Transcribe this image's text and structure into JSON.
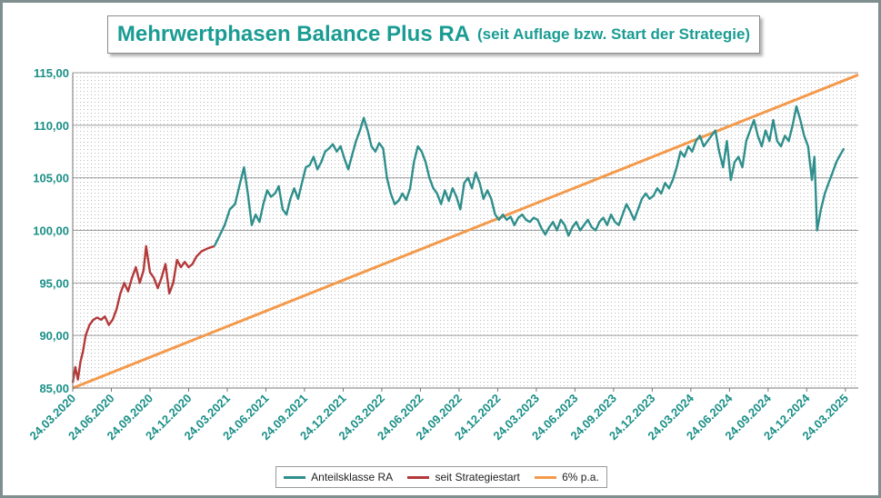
{
  "chart_data": {
    "type": "line",
    "title": "Mehrwertphasen Balance Plus RA",
    "subtitle": "(seit Auflage bzw. Start der Strategie)",
    "xlabel": "",
    "ylabel": "",
    "ylim": [
      85,
      115
    ],
    "yticks": [
      "85,00",
      "90,00",
      "95,00",
      "100,00",
      "105,00",
      "110,00",
      "115,00"
    ],
    "xticks": [
      "24.03.2020",
      "24.06.2020",
      "24.09.2020",
      "24.12.2020",
      "24.03.2021",
      "24.06.2021",
      "24.09.2021",
      "24.12.2021",
      "24.03.2022",
      "24.06.2022",
      "24.09.2022",
      "24.12.2022",
      "24.03.2023",
      "24.06.2023",
      "24.09.2023",
      "24.12.2023",
      "24.03.2024",
      "24.06.2024",
      "24.09.2024",
      "24.12.2024",
      "24.03.2025"
    ],
    "grid": true,
    "legend_position": "bottom",
    "series": [
      {
        "name": "Anteilsklasse RA",
        "color": "#2f8f8c",
        "points": [
          [
            11.0,
            98.5
          ],
          [
            11.4,
            99.5
          ],
          [
            11.8,
            100.5
          ],
          [
            12.2,
            102.0
          ],
          [
            12.6,
            102.5
          ],
          [
            13.0,
            104.5
          ],
          [
            13.3,
            106.0
          ],
          [
            13.6,
            103.5
          ],
          [
            13.9,
            100.5
          ],
          [
            14.2,
            101.5
          ],
          [
            14.5,
            100.8
          ],
          [
            14.8,
            102.5
          ],
          [
            15.1,
            103.8
          ],
          [
            15.4,
            103.2
          ],
          [
            15.7,
            103.5
          ],
          [
            16.0,
            104.2
          ],
          [
            16.3,
            102.0
          ],
          [
            16.6,
            101.5
          ],
          [
            16.9,
            103.0
          ],
          [
            17.2,
            104.0
          ],
          [
            17.5,
            103.0
          ],
          [
            17.8,
            104.5
          ],
          [
            18.1,
            106.0
          ],
          [
            18.4,
            106.2
          ],
          [
            18.7,
            107.0
          ],
          [
            19.0,
            105.8
          ],
          [
            19.3,
            106.5
          ],
          [
            19.6,
            107.5
          ],
          [
            19.9,
            107.8
          ],
          [
            20.2,
            108.2
          ],
          [
            20.5,
            107.5
          ],
          [
            20.8,
            108.0
          ],
          [
            21.1,
            106.8
          ],
          [
            21.4,
            105.8
          ],
          [
            21.7,
            107.2
          ],
          [
            22.0,
            108.5
          ],
          [
            22.3,
            109.5
          ],
          [
            22.6,
            110.7
          ],
          [
            22.9,
            109.5
          ],
          [
            23.2,
            108.0
          ],
          [
            23.5,
            107.5
          ],
          [
            23.8,
            108.3
          ],
          [
            24.1,
            107.8
          ],
          [
            24.4,
            105.0
          ],
          [
            24.7,
            103.5
          ],
          [
            25.0,
            102.5
          ],
          [
            25.3,
            102.8
          ],
          [
            25.6,
            103.5
          ],
          [
            25.9,
            102.9
          ],
          [
            26.2,
            104.0
          ],
          [
            26.5,
            106.5
          ],
          [
            26.8,
            108.0
          ],
          [
            27.1,
            107.5
          ],
          [
            27.4,
            106.5
          ],
          [
            27.7,
            105.0
          ],
          [
            28.0,
            104.0
          ],
          [
            28.3,
            103.5
          ],
          [
            28.6,
            102.5
          ],
          [
            28.9,
            103.8
          ],
          [
            29.2,
            102.8
          ],
          [
            29.5,
            104.0
          ],
          [
            29.8,
            103.2
          ],
          [
            30.1,
            102.0
          ],
          [
            30.4,
            104.5
          ],
          [
            30.7,
            105.0
          ],
          [
            31.0,
            104.0
          ],
          [
            31.3,
            105.5
          ],
          [
            31.6,
            104.5
          ],
          [
            31.9,
            103.0
          ],
          [
            32.2,
            103.8
          ],
          [
            32.5,
            103.0
          ],
          [
            32.8,
            101.5
          ],
          [
            33.1,
            101.0
          ],
          [
            33.4,
            101.5
          ],
          [
            33.7,
            101.0
          ],
          [
            34.0,
            101.3
          ],
          [
            34.3,
            100.5
          ],
          [
            34.6,
            101.2
          ],
          [
            34.9,
            101.5
          ],
          [
            35.2,
            101.0
          ],
          [
            35.5,
            100.8
          ],
          [
            35.8,
            101.2
          ],
          [
            36.1,
            101.0
          ],
          [
            36.4,
            100.2
          ],
          [
            36.7,
            99.6
          ],
          [
            37.0,
            100.3
          ],
          [
            37.3,
            100.8
          ],
          [
            37.6,
            100.0
          ],
          [
            37.9,
            101.0
          ],
          [
            38.2,
            100.5
          ],
          [
            38.5,
            99.5
          ],
          [
            38.8,
            100.3
          ],
          [
            39.1,
            100.8
          ],
          [
            39.4,
            100.0
          ],
          [
            39.7,
            100.5
          ],
          [
            40.0,
            101.0
          ],
          [
            40.3,
            100.3
          ],
          [
            40.6,
            100.0
          ],
          [
            40.9,
            100.8
          ],
          [
            41.2,
            101.2
          ],
          [
            41.5,
            100.5
          ],
          [
            41.8,
            101.5
          ],
          [
            42.1,
            100.8
          ],
          [
            42.4,
            100.5
          ],
          [
            42.7,
            101.5
          ],
          [
            43.0,
            102.5
          ],
          [
            43.3,
            101.8
          ],
          [
            43.6,
            101.0
          ],
          [
            43.9,
            102.0
          ],
          [
            44.2,
            103.0
          ],
          [
            44.5,
            103.5
          ],
          [
            44.8,
            103.0
          ],
          [
            45.1,
            103.3
          ],
          [
            45.4,
            104.0
          ],
          [
            45.7,
            103.5
          ],
          [
            46.0,
            104.5
          ],
          [
            46.3,
            104.0
          ],
          [
            46.6,
            104.8
          ],
          [
            46.9,
            106.0
          ],
          [
            47.2,
            107.5
          ],
          [
            47.5,
            107.0
          ],
          [
            47.8,
            108.0
          ],
          [
            48.1,
            107.5
          ],
          [
            48.4,
            108.5
          ],
          [
            48.7,
            109.0
          ],
          [
            49.0,
            108.0
          ],
          [
            49.3,
            108.5
          ],
          [
            49.6,
            109.0
          ],
          [
            49.9,
            109.5
          ],
          [
            50.2,
            107.5
          ],
          [
            50.5,
            106.0
          ],
          [
            50.8,
            108.5
          ],
          [
            51.1,
            104.8
          ],
          [
            51.4,
            106.5
          ],
          [
            51.7,
            107.0
          ],
          [
            52.0,
            106.0
          ],
          [
            52.3,
            108.5
          ],
          [
            52.6,
            109.5
          ],
          [
            52.9,
            110.5
          ],
          [
            53.2,
            109.0
          ],
          [
            53.5,
            108.0
          ],
          [
            53.8,
            109.5
          ],
          [
            54.1,
            108.5
          ],
          [
            54.4,
            110.5
          ],
          [
            54.7,
            108.5
          ],
          [
            55.0,
            108.0
          ],
          [
            55.3,
            109.0
          ],
          [
            55.6,
            108.5
          ],
          [
            55.9,
            110.0
          ],
          [
            56.2,
            111.8
          ],
          [
            56.5,
            110.5
          ],
          [
            56.8,
            109.0
          ],
          [
            57.1,
            108.0
          ],
          [
            57.4,
            104.8
          ],
          [
            57.6,
            107.0
          ],
          [
            57.8,
            100.0
          ],
          [
            58.1,
            102.0
          ],
          [
            58.4,
            103.5
          ],
          [
            58.7,
            104.5
          ],
          [
            59.0,
            105.5
          ],
          [
            59.3,
            106.5
          ],
          [
            59.6,
            107.2
          ],
          [
            59.9,
            107.8
          ]
        ]
      },
      {
        "name": "seit Strategiestart",
        "color": "#b33a3a",
        "points": [
          [
            0.0,
            85.5
          ],
          [
            0.2,
            87.0
          ],
          [
            0.4,
            85.8
          ],
          [
            0.6,
            87.5
          ],
          [
            0.8,
            88.5
          ],
          [
            1.0,
            90.0
          ],
          [
            1.3,
            91.0
          ],
          [
            1.6,
            91.5
          ],
          [
            1.9,
            91.7
          ],
          [
            2.2,
            91.5
          ],
          [
            2.5,
            91.8
          ],
          [
            2.8,
            91.0
          ],
          [
            3.1,
            91.5
          ],
          [
            3.4,
            92.5
          ],
          [
            3.7,
            94.0
          ],
          [
            4.0,
            95.0
          ],
          [
            4.3,
            94.2
          ],
          [
            4.6,
            95.5
          ],
          [
            4.9,
            96.5
          ],
          [
            5.2,
            95.0
          ],
          [
            5.5,
            96.2
          ],
          [
            5.7,
            98.5
          ],
          [
            6.0,
            96.0
          ],
          [
            6.3,
            95.5
          ],
          [
            6.6,
            94.5
          ],
          [
            6.9,
            95.5
          ],
          [
            7.2,
            96.8
          ],
          [
            7.5,
            94.0
          ],
          [
            7.8,
            95.0
          ],
          [
            8.1,
            97.2
          ],
          [
            8.4,
            96.5
          ],
          [
            8.7,
            97.0
          ],
          [
            9.0,
            96.5
          ],
          [
            9.3,
            96.8
          ],
          [
            9.6,
            97.5
          ],
          [
            10.0,
            98.0
          ],
          [
            10.5,
            98.3
          ],
          [
            11.0,
            98.5
          ]
        ]
      },
      {
        "name": "6% p.a.",
        "color": "#f39a4c",
        "points": [
          [
            0.0,
            85.0
          ],
          [
            61.0,
            114.8
          ]
        ]
      }
    ]
  }
}
